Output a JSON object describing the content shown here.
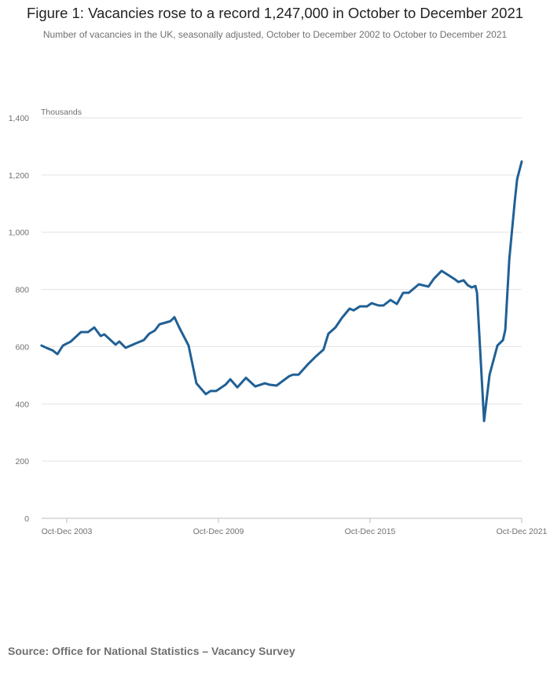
{
  "title": "Figure 1: Vacancies rose to a record 1,247,000 in October to December 2021",
  "subtitle": "Number of vacancies in the UK, seasonally adjusted, October to December 2002 to October to December 2021",
  "source": "Source: Office for National Statistics – Vacancy Survey",
  "chart_data": {
    "type": "line",
    "title": "Figure 1: Vacancies rose to a record 1,247,000 in October to December 2021",
    "ylabel": "Thousands",
    "xlabel": "",
    "ylim": [
      0,
      1400
    ],
    "xlim": [
      2002.75,
      2021.75
    ],
    "grid": true,
    "yticks": [
      0,
      200,
      400,
      600,
      800,
      1000,
      1200,
      1400
    ],
    "ytick_labels": [
      "0",
      "200",
      "400",
      "600",
      "800",
      "1,000",
      "1,200",
      "1,400"
    ],
    "xticks": [
      2003.75,
      2009.75,
      2015.75,
      2021.75
    ],
    "xtick_labels": [
      "Oct-Dec 2003",
      "Oct-Dec 2009",
      "Oct-Dec 2015",
      "Oct-Dec 2021"
    ],
    "line_color": "#206095",
    "series": [
      {
        "name": "Vacancies",
        "x": [
          2002.75,
          2002.97,
          2003.19,
          2003.38,
          2003.6,
          2003.91,
          2004.31,
          2004.59,
          2004.84,
          2005.09,
          2005.24,
          2005.68,
          2005.83,
          2006.08,
          2006.49,
          2006.8,
          2007.01,
          2007.23,
          2007.42,
          2007.85,
          2008.01,
          2008.2,
          2008.57,
          2008.88,
          2009.25,
          2009.44,
          2009.66,
          2010.03,
          2010.22,
          2010.5,
          2010.84,
          2011.21,
          2011.59,
          2011.77,
          2012.05,
          2012.55,
          2012.7,
          2012.92,
          2013.32,
          2013.63,
          2013.91,
          2014.1,
          2014.38,
          2014.63,
          2014.94,
          2015.1,
          2015.35,
          2015.63,
          2015.81,
          2016.09,
          2016.28,
          2016.56,
          2016.81,
          2017.06,
          2017.28,
          2017.49,
          2017.68,
          2018.06,
          2018.27,
          2018.58,
          2018.83,
          2019.08,
          2019.24,
          2019.45,
          2019.61,
          2019.77,
          2019.92,
          2019.98,
          2020.26,
          2020.48,
          2020.79,
          2021.01,
          2021.1,
          2021.26,
          2021.48,
          2021.57,
          2021.75
        ],
        "values": [
          604,
          595,
          587,
          574,
          604,
          618,
          651,
          651,
          667,
          637,
          643,
          607,
          618,
          596,
          612,
          623,
          645,
          656,
          678,
          689,
          703,
          667,
          604,
          472,
          434,
          445,
          445,
          467,
          486,
          458,
          491,
          461,
          472,
          467,
          464,
          497,
          502,
          502,
          541,
          568,
          590,
          645,
          667,
          700,
          733,
          727,
          741,
          741,
          752,
          744,
          744,
          763,
          749,
          788,
          788,
          804,
          818,
          810,
          837,
          865,
          851,
          837,
          826,
          832,
          815,
          807,
          812,
          788,
          340,
          502,
          604,
          623,
          659,
          906,
          1112,
          1186,
          1247
        ]
      }
    ]
  }
}
